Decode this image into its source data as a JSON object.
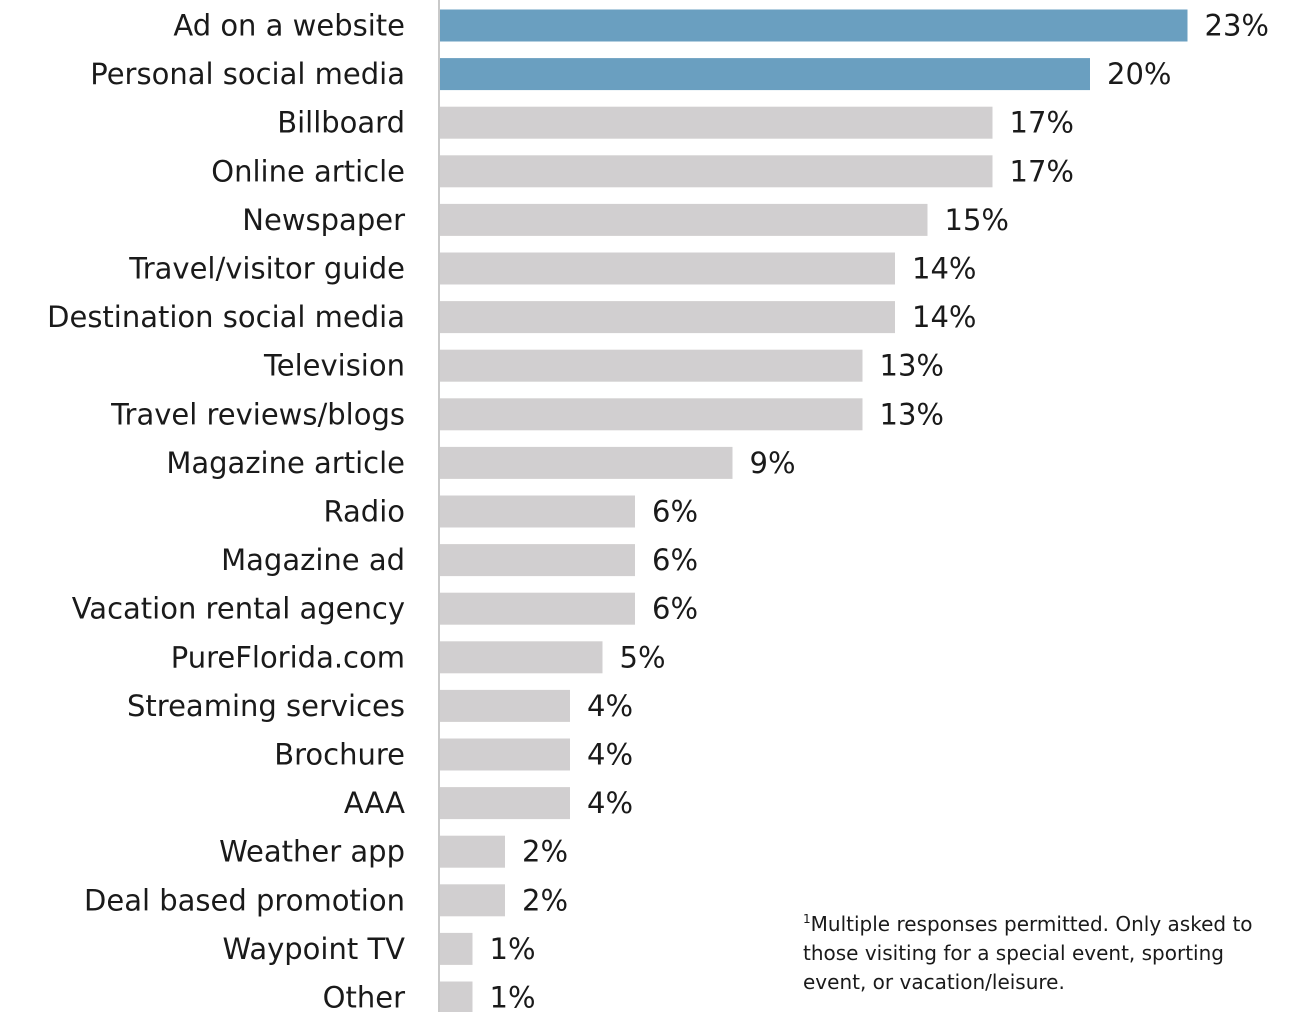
{
  "chart_data": {
    "type": "bar",
    "orientation": "horizontal",
    "categories": [
      "Ad on a website",
      "Personal social media",
      "Billboard",
      "Online article",
      "Newspaper",
      "Travel/visitor guide",
      "Destination social media",
      "Television",
      "Travel reviews/blogs",
      "Magazine article",
      "Radio",
      "Magazine ad",
      "Vacation rental agency",
      "PureFlorida.com",
      "Streaming services",
      "Brochure",
      "AAA",
      "Weather app",
      "Deal based promotion",
      "Waypoint TV",
      "Other"
    ],
    "values": [
      23,
      20,
      17,
      17,
      15,
      14,
      14,
      13,
      13,
      9,
      6,
      6,
      6,
      5,
      4,
      4,
      4,
      2,
      2,
      1,
      1
    ],
    "value_labels": [
      "23%",
      "20%",
      "17%",
      "17%",
      "15%",
      "14%",
      "14%",
      "13%",
      "13%",
      "9%",
      "6%",
      "6%",
      "6%",
      "5%",
      "4%",
      "4%",
      "4%",
      "2%",
      "2%",
      "1%",
      "1%"
    ],
    "highlighted": [
      0,
      1
    ],
    "colors": {
      "highlight": "#6a9fc0",
      "default": "#d1cfd0",
      "axis": "#c9c9c9"
    },
    "xlim": [
      0,
      23
    ],
    "grid": false,
    "legend": "none"
  },
  "footnote": {
    "marker": "1",
    "text": "Multiple responses permitted. Only asked to those visiting for a special event, sporting event, or vacation/leisure."
  }
}
